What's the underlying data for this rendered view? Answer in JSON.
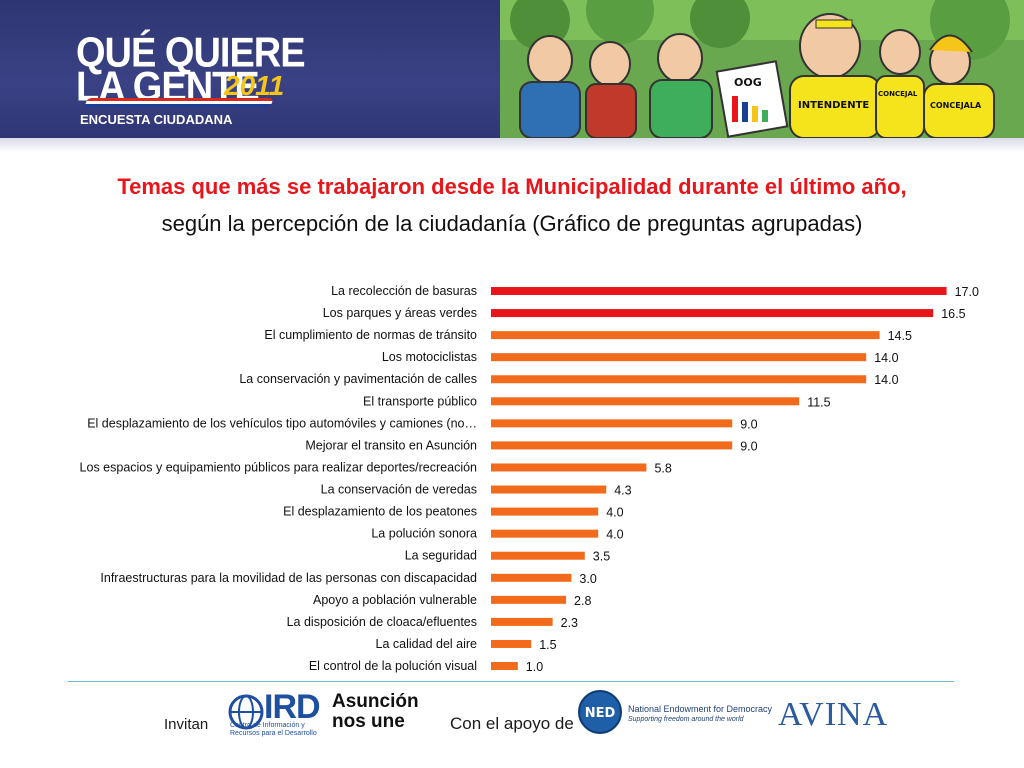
{
  "header": {
    "logo_line1": "QUÉ QUIERE",
    "logo_line2": "LA GENTE",
    "logo_year": "2011",
    "logo_subtitle": "ENCUESTA CIUDADANA",
    "cartoon_signs": [
      "OOG",
      "INTENDENTE",
      "CONCEJALA",
      "CONCEJAL"
    ]
  },
  "title": {
    "line1": "Temas que más se trabajaron desde la Municipalidad durante el último año,",
    "line2": "según la percepción de la ciudadanía (Gráfico de preguntas agrupadas)"
  },
  "colors": {
    "title_red": "#e8161b",
    "bar_red": "#e8161b",
    "bar_orange": "#f26a1b",
    "banner_blue": "#2d3572"
  },
  "chart_data": {
    "type": "bar",
    "orientation": "horizontal",
    "categories": [
      "La recolección de basuras",
      "Los parques y áreas verdes",
      "El cumplimiento de normas de tránsito",
      "Los motociclistas",
      "La conservación y pavimentación de calles",
      "El transporte público",
      "El desplazamiento de los vehículos tipo automóviles y camiones (no…",
      "Mejorar el transito en Asunción",
      "Los espacios y equipamiento públicos para realizar deportes/recreación",
      "La conservación de veredas",
      "El desplazamiento de los peatones",
      "La polución sonora",
      "La seguridad",
      "Infraestructuras para la movilidad de las personas con discapacidad",
      "Apoyo a población vulnerable",
      "La disposición de cloaca/efluentes",
      "La calidad del aire",
      "El control de la polución visual"
    ],
    "values": [
      17.0,
      16.5,
      14.5,
      14.0,
      14.0,
      11.5,
      9.0,
      9.0,
      5.8,
      4.3,
      4.0,
      4.0,
      3.5,
      3.0,
      2.8,
      2.3,
      1.5,
      1.0
    ],
    "value_labels": [
      "17.0",
      "16.5",
      "14.5",
      "14.0",
      "14.0",
      "11.5",
      "9.0",
      "9.0",
      "5.8",
      "4.3",
      "4.0",
      "4.0",
      "3.5",
      "3.0",
      "2.8",
      "2.3",
      "1.5",
      "1.0"
    ],
    "highlight_top_n": 2,
    "xlim": [
      0,
      18
    ],
    "grid": false,
    "legend": "none",
    "title": "Temas que más se trabajaron desde la Municipalidad durante el último año, según la percepción de la ciudadanía (Gráfico de preguntas agrupadas)"
  },
  "footer": {
    "invite_label": "Invitan",
    "support_label": "Con el apoyo de",
    "ird_name": "IRD",
    "ird_subtitle": "Centro de Información y Recursos para el Desarrollo",
    "asuncion_line1": "Asunción",
    "asuncion_line2": "nos une",
    "ned_short": "NED",
    "ned_name": "National Endowment for Democracy",
    "ned_tagline": "Supporting freedom around the world",
    "avina_name": "AVINA"
  }
}
